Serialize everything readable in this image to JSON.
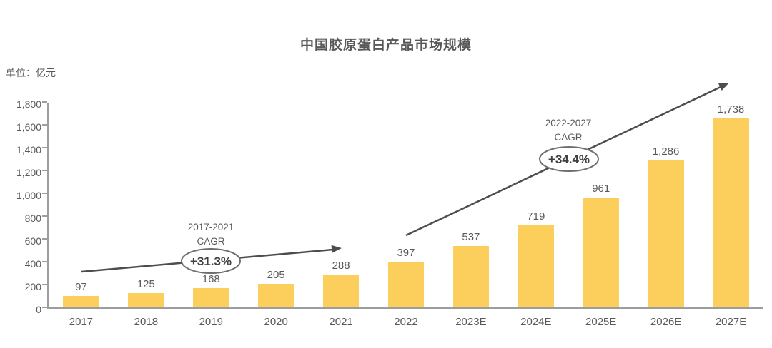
{
  "chart_data": {
    "type": "bar",
    "title": "中国胶原蛋白产品市场规模",
    "unit_label": "单位：亿元",
    "categories": [
      "2017",
      "2018",
      "2019",
      "2020",
      "2021",
      "2022",
      "2023E",
      "2024E",
      "2025E",
      "2026E",
      "2027E"
    ],
    "values": [
      97,
      125,
      168,
      205,
      288,
      397,
      537,
      719,
      961,
      1286,
      1738
    ],
    "value_labels": [
      "97",
      "125",
      "168",
      "205",
      "288",
      "397",
      "537",
      "719",
      "961",
      "1,286",
      "1,738"
    ],
    "xlabel": "",
    "ylabel": "",
    "ylim": [
      0,
      1800
    ],
    "ytick_step": 200,
    "ytick_labels": [
      "0",
      "200",
      "400",
      "600",
      "800",
      "1,000",
      "1,200",
      "1,400",
      "1,600",
      "1,800"
    ],
    "grid": false,
    "legend": "none",
    "bar_color": "#FCCE5C",
    "axis_color": "#9d9d9d",
    "text_color": "#595959",
    "arrow_color": "#4d4d4d",
    "annotations": [
      {
        "label_line1": "2017-2021",
        "label_line2": "CAGR",
        "badge": "+31.3%"
      },
      {
        "label_line1": "2022-2027",
        "label_line2": "CAGR",
        "badge": "+34.4%"
      }
    ]
  }
}
